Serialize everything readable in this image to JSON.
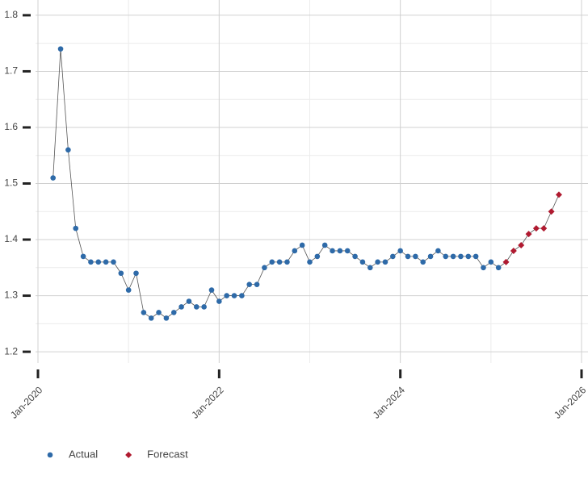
{
  "chart_data": {
    "type": "line",
    "xlim": [
      "Jan-2020",
      "Jan-2026"
    ],
    "xticks": [
      "Jan-2020",
      "Jan-2022",
      "Jan-2024",
      "Jan-2026"
    ],
    "ylim": [
      1.18,
      1.82
    ],
    "yticks": [
      1.2,
      1.3,
      1.4,
      1.5,
      1.6,
      1.7,
      1.8
    ],
    "grid": true,
    "line_color": "#555555",
    "legend": "bottom-left",
    "series": [
      {
        "name": "Actual",
        "color": "#2e6aa8",
        "marker": "circle",
        "x": [
          "Mar-2020",
          "Apr-2020",
          "May-2020",
          "Jun-2020",
          "Jul-2020",
          "Aug-2020",
          "Sep-2020",
          "Oct-2020",
          "Nov-2020",
          "Dec-2020",
          "Jan-2021",
          "Feb-2021",
          "Mar-2021",
          "Apr-2021",
          "May-2021",
          "Jun-2021",
          "Jul-2021",
          "Aug-2021",
          "Sep-2021",
          "Oct-2021",
          "Nov-2021",
          "Dec-2021",
          "Jan-2022",
          "Feb-2022",
          "Mar-2022",
          "Apr-2022",
          "May-2022",
          "Jun-2022",
          "Jul-2022",
          "Aug-2022",
          "Sep-2022",
          "Oct-2022",
          "Nov-2022",
          "Dec-2022",
          "Jan-2023",
          "Feb-2023",
          "Mar-2023",
          "Apr-2023",
          "May-2023",
          "Jun-2023",
          "Jul-2023",
          "Aug-2023",
          "Sep-2023",
          "Oct-2023",
          "Nov-2023",
          "Dec-2023",
          "Jan-2024",
          "Feb-2024",
          "Mar-2024",
          "Apr-2024",
          "May-2024",
          "Jun-2024",
          "Jul-2024",
          "Aug-2024",
          "Sep-2024",
          "Oct-2024",
          "Nov-2024",
          "Dec-2024",
          "Jan-2025",
          "Feb-2025"
        ],
        "values": [
          1.51,
          1.74,
          1.56,
          1.42,
          1.37,
          1.36,
          1.36,
          1.36,
          1.36,
          1.34,
          1.31,
          1.34,
          1.27,
          1.26,
          1.27,
          1.26,
          1.27,
          1.28,
          1.29,
          1.28,
          1.28,
          1.31,
          1.29,
          1.3,
          1.3,
          1.3,
          1.32,
          1.32,
          1.35,
          1.36,
          1.36,
          1.36,
          1.38,
          1.39,
          1.36,
          1.37,
          1.39,
          1.38,
          1.38,
          1.38,
          1.37,
          1.36,
          1.35,
          1.36,
          1.36,
          1.37,
          1.38,
          1.37,
          1.37,
          1.36,
          1.37,
          1.38,
          1.37,
          1.37,
          1.37,
          1.37,
          1.37,
          1.35,
          1.36,
          1.35
        ]
      },
      {
        "name": "Forecast",
        "color": "#b01a30",
        "marker": "diamond",
        "x": [
          "Mar-2025",
          "Apr-2025",
          "May-2025",
          "Jun-2025",
          "Jul-2025",
          "Aug-2025",
          "Sep-2025",
          "Oct-2025"
        ],
        "values": [
          1.36,
          1.38,
          1.39,
          1.41,
          1.42,
          1.42,
          1.45,
          1.48
        ]
      }
    ]
  }
}
